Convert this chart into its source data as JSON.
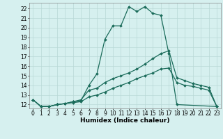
{
  "xlabel": "Humidex (Indice chaleur)",
  "bg_color": "#d6f0ef",
  "grid_color": "#b8d8d6",
  "line_color": "#1a6b5a",
  "xlim": [
    -0.5,
    23.5
  ],
  "ylim": [
    11.6,
    22.6
  ],
  "yticks": [
    12,
    13,
    14,
    15,
    16,
    17,
    18,
    19,
    20,
    21,
    22
  ],
  "xticks": [
    0,
    1,
    2,
    3,
    4,
    5,
    6,
    7,
    8,
    9,
    10,
    11,
    12,
    13,
    14,
    15,
    16,
    17,
    18,
    19,
    20,
    21,
    22,
    23
  ],
  "line1_x": [
    0,
    1,
    2,
    3,
    4,
    5,
    6,
    7,
    8,
    9,
    10,
    11,
    12,
    13,
    14,
    15,
    16,
    17,
    18,
    23
  ],
  "line1_y": [
    12.5,
    11.8,
    11.8,
    12.0,
    12.1,
    12.3,
    12.4,
    14.0,
    15.2,
    18.8,
    20.2,
    20.2,
    22.2,
    21.7,
    22.2,
    21.5,
    21.3,
    17.3,
    12.0,
    11.8
  ],
  "line2_x": [
    0,
    1,
    2,
    3,
    4,
    5,
    6,
    7,
    8,
    9,
    10,
    11,
    12,
    13,
    14,
    15,
    16,
    17,
    18,
    19,
    20,
    21,
    22,
    23
  ],
  "line2_y": [
    12.5,
    11.8,
    11.8,
    12.0,
    12.1,
    12.3,
    12.5,
    13.5,
    13.7,
    14.3,
    14.7,
    15.0,
    15.3,
    15.7,
    16.2,
    16.8,
    17.3,
    17.6,
    14.8,
    14.5,
    14.2,
    14.0,
    13.8,
    11.8
  ],
  "line3_x": [
    0,
    1,
    2,
    3,
    4,
    5,
    6,
    7,
    8,
    9,
    10,
    11,
    12,
    13,
    14,
    15,
    16,
    17,
    18,
    19,
    20,
    21,
    22,
    23
  ],
  "line3_y": [
    12.5,
    11.8,
    11.8,
    12.0,
    12.1,
    12.2,
    12.3,
    12.8,
    13.0,
    13.3,
    13.7,
    14.0,
    14.3,
    14.7,
    15.0,
    15.3,
    15.7,
    15.8,
    14.3,
    14.0,
    13.9,
    13.7,
    13.5,
    11.8
  ],
  "marker": "D",
  "markersize": 2.0,
  "linewidth": 0.9,
  "xlabel_fontsize": 6.5,
  "tick_fontsize": 5.5
}
